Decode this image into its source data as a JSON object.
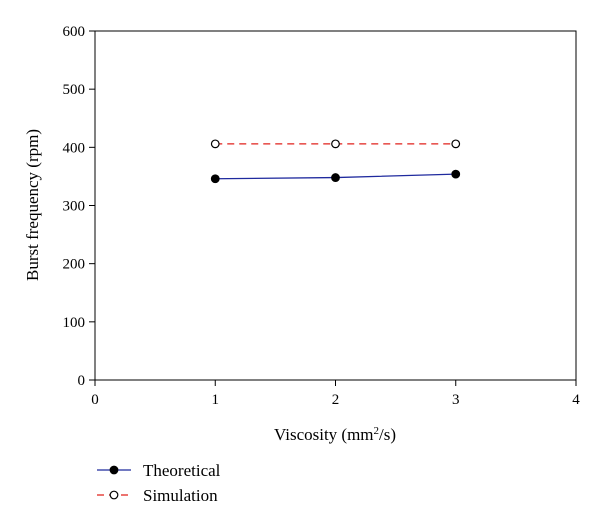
{
  "chart_data": {
    "type": "line",
    "xlabel_main": "Viscosity (mm",
    "xlabel_sup": "2",
    "xlabel_end": "/s)",
    "ylabel": "Burst frequency (rpm)",
    "xlim": [
      0,
      4
    ],
    "ylim": [
      0,
      600
    ],
    "x_ticks": [
      "0",
      "1",
      "2",
      "3",
      "4"
    ],
    "y_ticks": [
      "0",
      "100",
      "200",
      "300",
      "400",
      "500",
      "600"
    ],
    "grid": false,
    "legend_position": "bottom-left",
    "x": [
      1,
      2,
      3
    ],
    "series": [
      {
        "name": "Theoretical",
        "values": [
          346,
          348,
          354
        ],
        "color": "#1f2a9e",
        "line_style": "solid",
        "marker": "filled-circle"
      },
      {
        "name": "Simulation",
        "values": [
          406,
          406,
          406
        ],
        "color": "#e0201b",
        "line_style": "dashed",
        "marker": "open-circle"
      }
    ]
  }
}
